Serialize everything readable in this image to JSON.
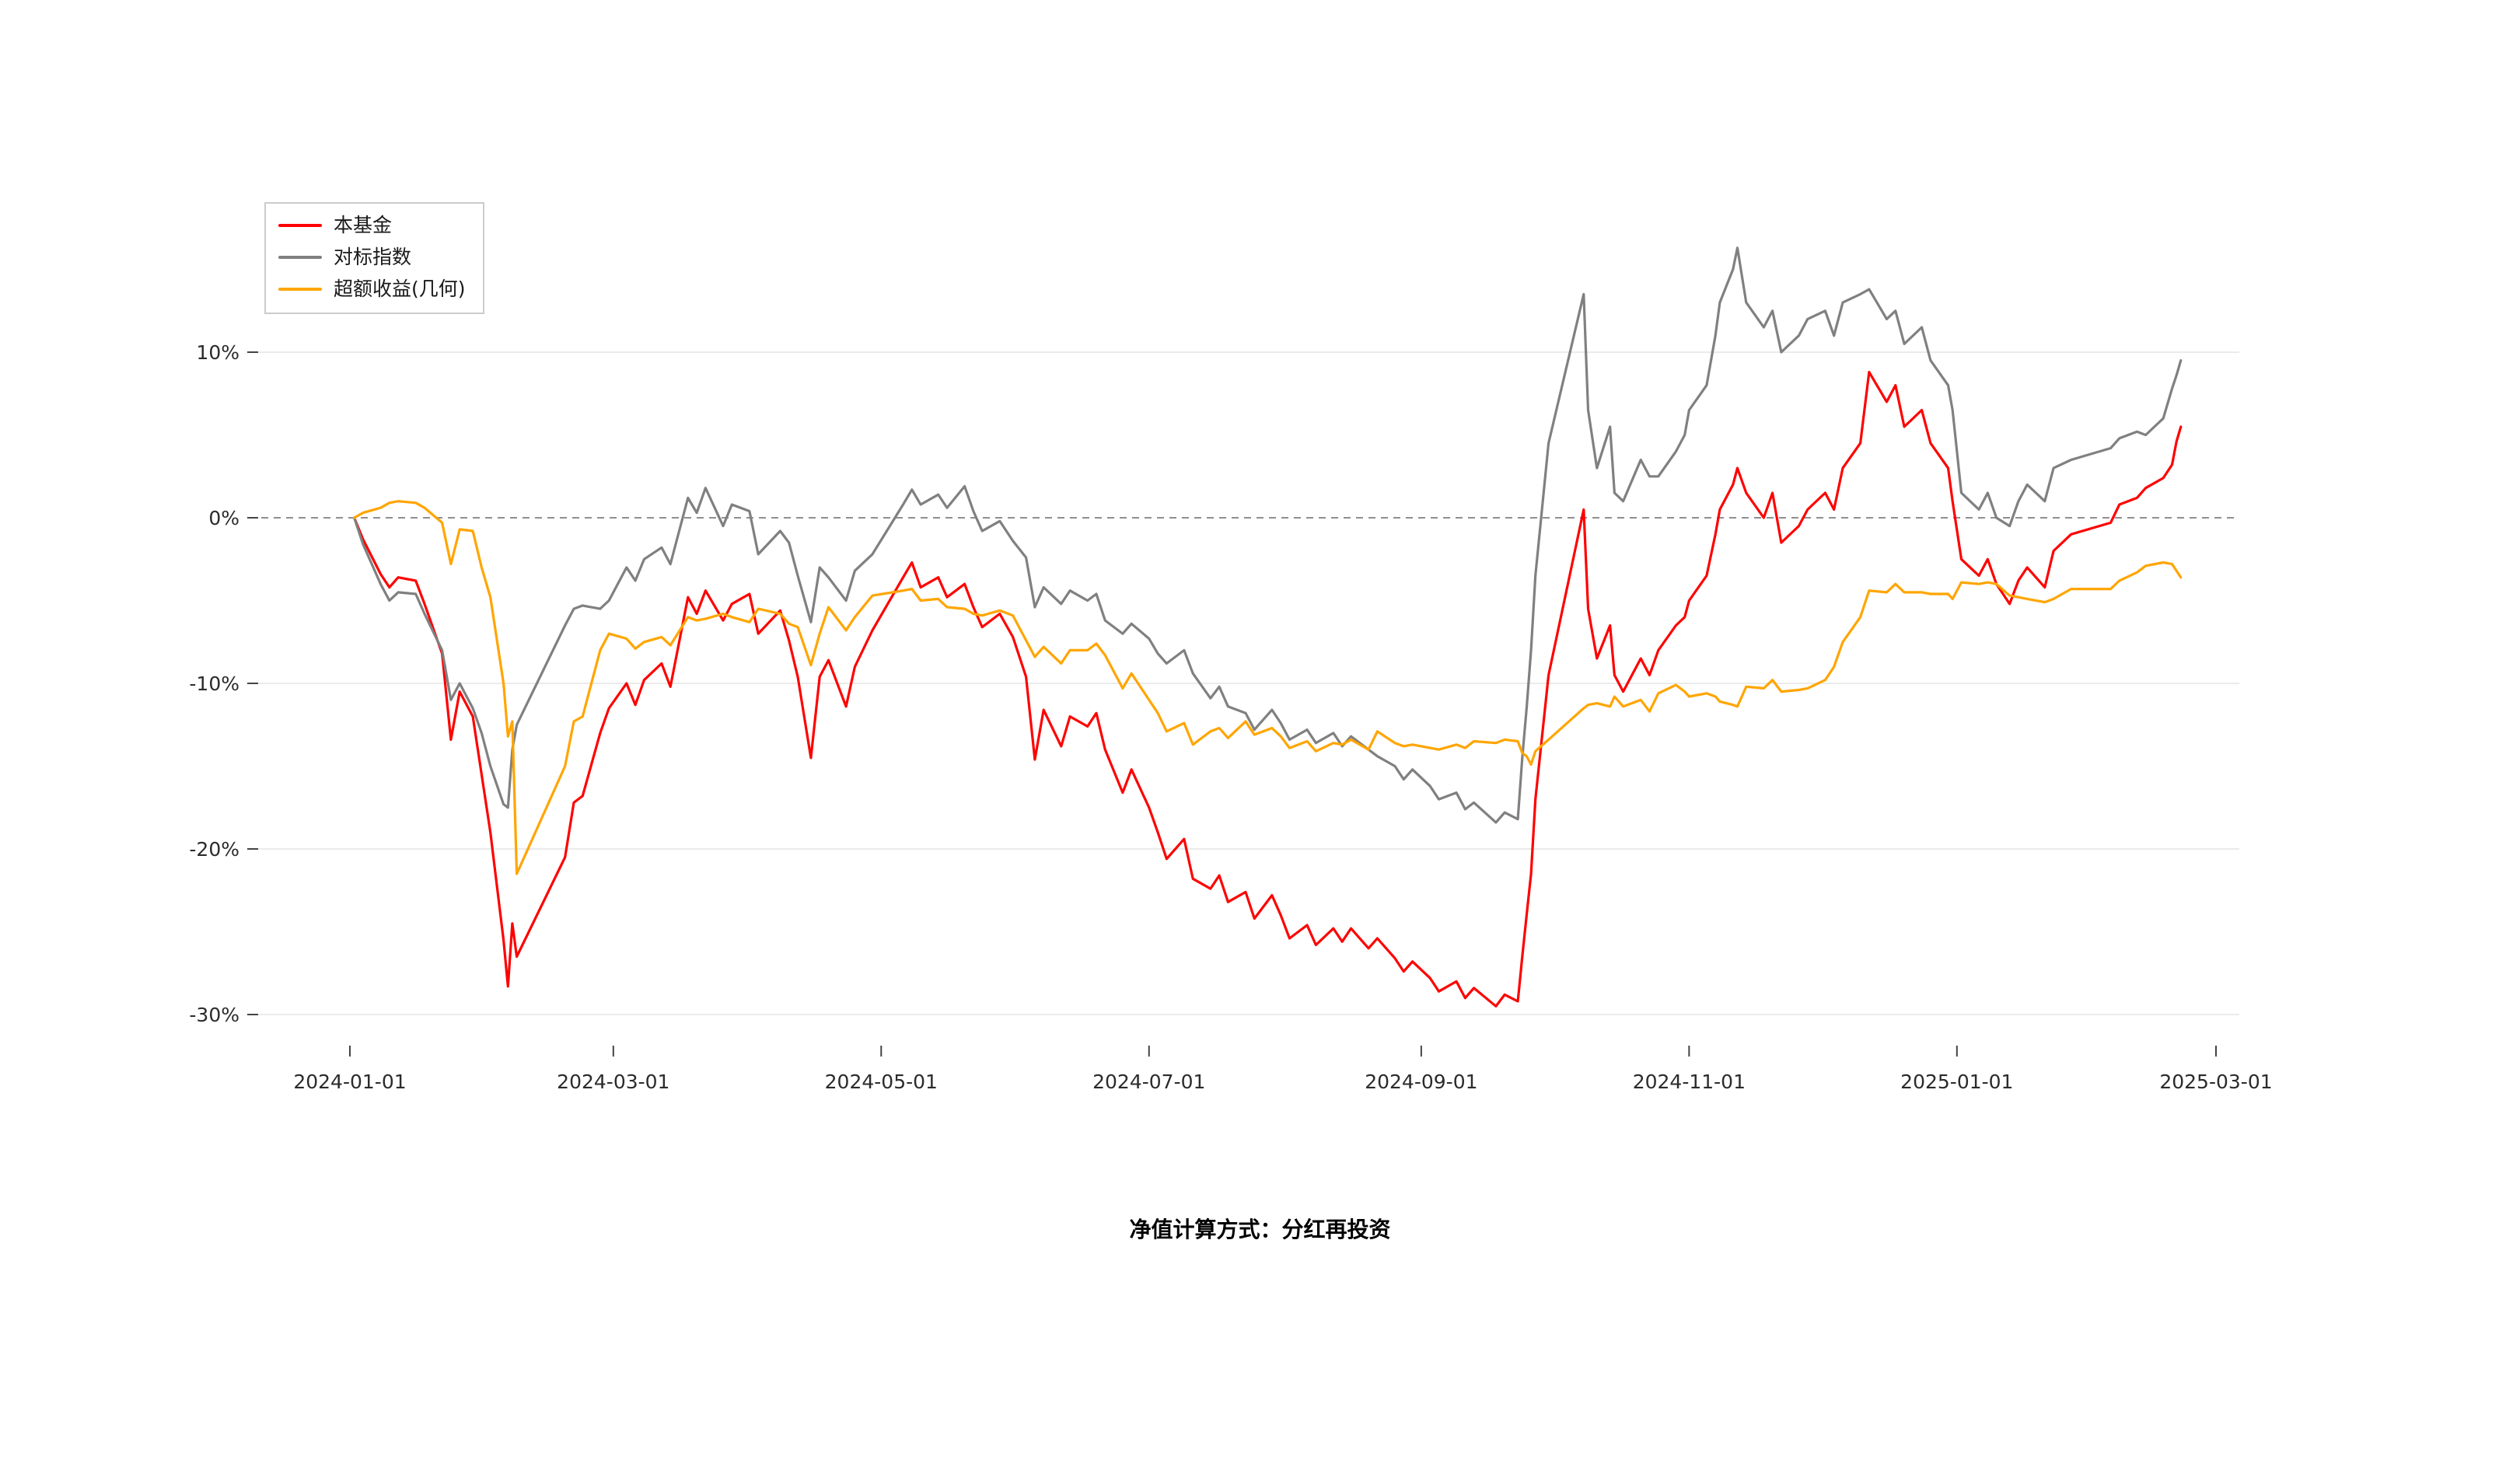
{
  "chart_data": {
    "type": "line",
    "title": "",
    "xlabel": "",
    "ylabel": "",
    "footnote": "净值计算方式：分红再投资",
    "legend_position": "top-left",
    "grid": {
      "horizontal": true,
      "color": "#ebebeb"
    },
    "zero_line": {
      "value": 0,
      "style": "dashed",
      "color": "#8f8f8f"
    },
    "ylim": [
      -32,
      19
    ],
    "y_ticks": [
      {
        "value": 10,
        "label": "10%"
      },
      {
        "value": 0,
        "label": "0%"
      },
      {
        "value": -10,
        "label": "-10%"
      },
      {
        "value": -20,
        "label": "-20%"
      },
      {
        "value": -30,
        "label": "-30%"
      }
    ],
    "x_ticks": [
      "2024-01-01",
      "2024-03-01",
      "2024-05-01",
      "2024-07-01",
      "2024-09-01",
      "2024-11-01",
      "2025-01-01",
      "2025-03-01"
    ],
    "x": [
      "2024-01-02",
      "2024-01-04",
      "2024-01-08",
      "2024-01-10",
      "2024-01-12",
      "2024-01-16",
      "2024-01-18",
      "2024-01-22",
      "2024-01-24",
      "2024-01-26",
      "2024-01-29",
      "2024-01-31",
      "2024-02-02",
      "2024-02-05",
      "2024-02-06",
      "2024-02-07",
      "2024-02-08",
      "2024-02-19",
      "2024-02-21",
      "2024-02-23",
      "2024-02-27",
      "2024-02-29",
      "2024-03-04",
      "2024-03-06",
      "2024-03-08",
      "2024-03-12",
      "2024-03-14",
      "2024-03-18",
      "2024-03-20",
      "2024-03-22",
      "2024-03-26",
      "2024-03-28",
      "2024-04-01",
      "2024-04-03",
      "2024-04-08",
      "2024-04-10",
      "2024-04-12",
      "2024-04-15",
      "2024-04-17",
      "2024-04-19",
      "2024-04-23",
      "2024-04-25",
      "2024-04-29",
      "2024-05-06",
      "2024-05-08",
      "2024-05-10",
      "2024-05-14",
      "2024-05-16",
      "2024-05-20",
      "2024-05-22",
      "2024-05-24",
      "2024-05-28",
      "2024-05-31",
      "2024-06-03",
      "2024-06-05",
      "2024-06-07",
      "2024-06-11",
      "2024-06-13",
      "2024-06-17",
      "2024-06-19",
      "2024-06-21",
      "2024-06-25",
      "2024-06-27",
      "2024-07-01",
      "2024-07-03",
      "2024-07-05",
      "2024-07-09",
      "2024-07-11",
      "2024-07-15",
      "2024-07-17",
      "2024-07-19",
      "2024-07-23",
      "2024-07-25",
      "2024-07-29",
      "2024-07-31",
      "2024-08-02",
      "2024-08-06",
      "2024-08-08",
      "2024-08-12",
      "2024-08-14",
      "2024-08-16",
      "2024-08-20",
      "2024-08-22",
      "2024-08-26",
      "2024-08-28",
      "2024-08-30",
      "2024-09-03",
      "2024-09-05",
      "2024-09-09",
      "2024-09-11",
      "2024-09-13",
      "2024-09-18",
      "2024-09-20",
      "2024-09-23",
      "2024-09-24",
      "2024-09-25",
      "2024-09-26",
      "2024-09-27",
      "2024-09-30",
      "2024-10-08",
      "2024-10-09",
      "2024-10-11",
      "2024-10-14",
      "2024-10-15",
      "2024-10-17",
      "2024-10-21",
      "2024-10-23",
      "2024-10-25",
      "2024-10-29",
      "2024-10-31",
      "2024-11-01",
      "2024-11-05",
      "2024-11-07",
      "2024-11-08",
      "2024-11-11",
      "2024-11-12",
      "2024-11-14",
      "2024-11-18",
      "2024-11-20",
      "2024-11-22",
      "2024-11-26",
      "2024-11-28",
      "2024-12-02",
      "2024-12-04",
      "2024-12-06",
      "2024-12-10",
      "2024-12-12",
      "2024-12-16",
      "2024-12-18",
      "2024-12-20",
      "2024-12-24",
      "2024-12-26",
      "2024-12-30",
      "2024-12-31",
      "2025-01-02",
      "2025-01-06",
      "2025-01-08",
      "2025-01-10",
      "2025-01-13",
      "2025-01-15",
      "2025-01-17",
      "2025-01-21",
      "2025-01-23",
      "2025-01-27",
      "2025-02-05",
      "2025-02-07",
      "2025-02-11",
      "2025-02-13",
      "2025-02-17",
      "2025-02-19",
      "2025-02-20",
      "2025-02-21"
    ],
    "series": [
      {
        "id": "fund",
        "name": "本基金",
        "color": "#ff0000",
        "values": [
          0,
          -1.3,
          -3.4,
          -4.2,
          -3.6,
          -3.8,
          -5.2,
          -8.2,
          -13.4,
          -10.5,
          -12,
          -15.5,
          -19,
          -25.5,
          -28.3,
          -24.5,
          -26.5,
          -20.5,
          -17.2,
          -16.8,
          -13,
          -11.5,
          -10,
          -11.3,
          -9.8,
          -8.8,
          -10.2,
          -4.8,
          -5.8,
          -4.4,
          -6.2,
          -5.2,
          -4.6,
          -7,
          -5.6,
          -7.4,
          -9.6,
          -14.5,
          -9.6,
          -8.6,
          -11.4,
          -9,
          -6.8,
          -3.6,
          -2.7,
          -4.2,
          -3.6,
          -4.8,
          -4,
          -5.4,
          -6.6,
          -5.8,
          -7.2,
          -9.6,
          -14.6,
          -11.6,
          -13.8,
          -12,
          -12.6,
          -11.8,
          -14,
          -16.6,
          -15.2,
          -17.5,
          -19,
          -20.6,
          -19.4,
          -21.8,
          -22.4,
          -21.6,
          -23.2,
          -22.6,
          -24.2,
          -22.8,
          -24,
          -25.4,
          -24.6,
          -25.8,
          -24.8,
          -25.6,
          -24.8,
          -26,
          -25.4,
          -26.6,
          -27.4,
          -26.8,
          -27.8,
          -28.6,
          -28,
          -29,
          -28.4,
          -29.5,
          -28.8,
          -29.2,
          -26.5,
          -24,
          -21.5,
          -17,
          -9.5,
          0.5,
          -5.5,
          -8.5,
          -6.5,
          -9.5,
          -10.5,
          -8.5,
          -9.5,
          -8,
          -6.5,
          -6,
          -5,
          -3.5,
          -1,
          0.5,
          2,
          3,
          1.5,
          0,
          1.5,
          -1.5,
          -0.5,
          0.5,
          1.5,
          0.5,
          3,
          4.5,
          8.8,
          7,
          8,
          5.5,
          6.5,
          4.5,
          3,
          1,
          -2.5,
          -3.5,
          -2.5,
          -4,
          -5.2,
          -3.8,
          -3,
          -4.2,
          -2,
          -1,
          -0.3,
          0.8,
          1.2,
          1.8,
          2.4,
          3.2,
          4.6,
          5.5
        ]
      },
      {
        "id": "benchmark",
        "name": "对标指数",
        "color": "#808080",
        "values": [
          0,
          -1.6,
          -4,
          -5,
          -4.5,
          -4.6,
          -5.8,
          -8,
          -11,
          -10,
          -11.5,
          -13,
          -15,
          -17.3,
          -17.5,
          -14,
          -12.5,
          -6.5,
          -5.5,
          -5.3,
          -5.5,
          -5,
          -3,
          -3.8,
          -2.5,
          -1.8,
          -2.8,
          1.2,
          0.3,
          1.8,
          -0.5,
          0.8,
          0.4,
          -2.2,
          -0.8,
          -1.5,
          -3.5,
          -6.3,
          -3,
          -3.6,
          -5,
          -3.2,
          -2.2,
          0.8,
          1.7,
          0.8,
          1.4,
          0.6,
          1.9,
          0.4,
          -0.8,
          -0.2,
          -1.4,
          -2.4,
          -5.4,
          -4.2,
          -5.2,
          -4.4,
          -5,
          -4.6,
          -6.2,
          -7,
          -6.4,
          -7.3,
          -8.2,
          -8.8,
          -8,
          -9.4,
          -10.9,
          -10.2,
          -11.4,
          -11.8,
          -12.8,
          -11.6,
          -12.4,
          -13.4,
          -12.8,
          -13.6,
          -13,
          -13.8,
          -13.2,
          -14,
          -14.4,
          -15,
          -15.8,
          -15.2,
          -16.2,
          -17,
          -16.6,
          -17.6,
          -17.2,
          -18.4,
          -17.8,
          -18.2,
          -14.5,
          -11.5,
          -8,
          -3.5,
          4.5,
          13.5,
          6.5,
          3,
          5.5,
          1.5,
          1,
          3.5,
          2.5,
          2.5,
          4,
          5,
          6.5,
          8,
          11,
          13,
          15,
          16.3,
          13,
          11.5,
          12.5,
          10,
          11,
          12,
          12.5,
          11,
          13,
          13.5,
          13.8,
          12,
          12.5,
          10.5,
          11.5,
          9.5,
          8,
          6.5,
          1.5,
          0.5,
          1.5,
          0,
          -0.5,
          1,
          2,
          1,
          3,
          3.5,
          4.2,
          4.8,
          5.2,
          5,
          6,
          7.8,
          8.6,
          9.5
        ]
      },
      {
        "id": "excess-return",
        "name": "超额收益(几何)",
        "color": "#ffa500",
        "values": [
          0,
          0.3,
          0.6,
          0.9,
          1,
          0.9,
          0.6,
          -0.3,
          -2.8,
          -0.7,
          -0.8,
          -3,
          -4.8,
          -10,
          -13.2,
          -12.3,
          -21.5,
          -15,
          -12.3,
          -12,
          -8,
          -7,
          -7.3,
          -7.9,
          -7.5,
          -7.2,
          -7.7,
          -6,
          -6.2,
          -6.1,
          -5.8,
          -6,
          -6.3,
          -5.5,
          -5.8,
          -6.4,
          -6.6,
          -8.9,
          -7,
          -5.4,
          -6.8,
          -6,
          -4.7,
          -4.4,
          -4.3,
          -5,
          -4.9,
          -5.4,
          -5.5,
          -5.8,
          -5.9,
          -5.6,
          -5.9,
          -7.4,
          -8.4,
          -7.8,
          -8.8,
          -8,
          -8,
          -7.6,
          -8.3,
          -10.3,
          -9.4,
          -11,
          -11.8,
          -12.9,
          -12.4,
          -13.7,
          -12.9,
          -12.7,
          -13.3,
          -12.3,
          -13.1,
          -12.7,
          -13.2,
          -13.9,
          -13.5,
          -14.1,
          -13.6,
          -13.7,
          -13.4,
          -14,
          -12.9,
          -13.6,
          -13.8,
          -13.7,
          -13.9,
          -14,
          -13.7,
          -13.9,
          -13.5,
          -13.6,
          -13.4,
          -13.5,
          -14.2,
          -14.4,
          -14.9,
          -14.1,
          -13.4,
          -11.5,
          -11.3,
          -11.2,
          -11.4,
          -10.8,
          -11.4,
          -11,
          -11.7,
          -10.6,
          -10.1,
          -10.5,
          -10.8,
          -10.6,
          -10.8,
          -11.1,
          -11.3,
          -11.4,
          -10.2,
          -10.3,
          -9.8,
          -10.5,
          -10.4,
          -10.3,
          -9.8,
          -9,
          -7.5,
          -6,
          -4.4,
          -4.5,
          -4,
          -4.5,
          -4.5,
          -4.6,
          -4.6,
          -4.9,
          -3.9,
          -4,
          -3.9,
          -4,
          -4.7,
          -4.8,
          -4.9,
          -5.1,
          -4.9,
          -4.3,
          -4.3,
          -3.8,
          -3.3,
          -2.9,
          -2.7,
          -2.8,
          -3.2,
          -3.6
        ]
      }
    ]
  }
}
